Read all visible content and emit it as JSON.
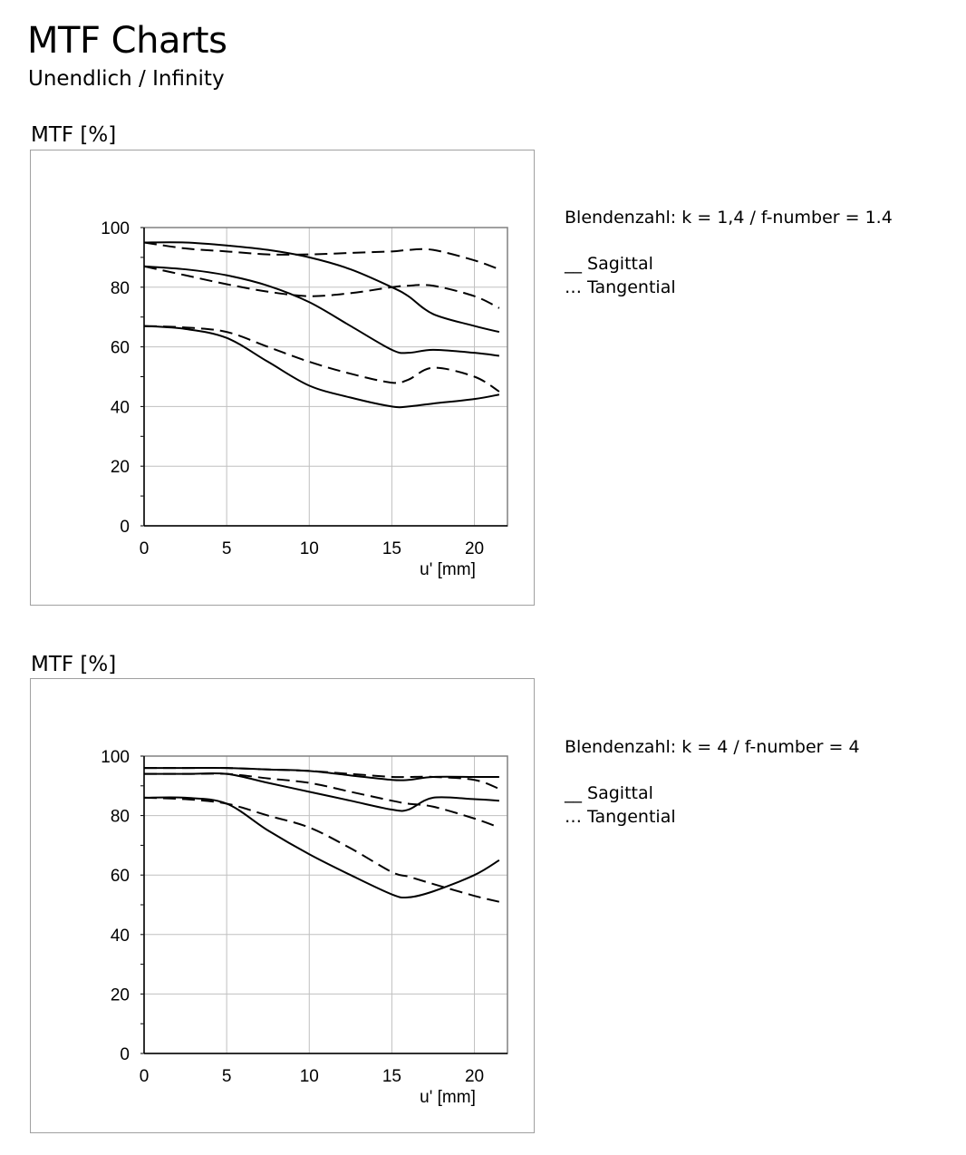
{
  "header": {
    "title": "MTF Charts",
    "subtitle": "Unendlich / Infinity"
  },
  "legend": {
    "sagittal": "__ Sagittal",
    "tangential": "… Tangential"
  },
  "chart_data": [
    {
      "type": "line",
      "ylabel": "MTF [%]",
      "xlabel": "u' [mm]",
      "caption": "Blendenzahl: k = 1,4 / f-number = 1.4",
      "xlim": [
        0,
        22
      ],
      "ylim": [
        0,
        100
      ],
      "xticks": [
        0,
        5,
        10,
        15,
        20
      ],
      "yticks": [
        0,
        20,
        40,
        60,
        80,
        100
      ],
      "grid": true,
      "x": [
        0,
        2.5,
        5,
        7.5,
        10,
        12.5,
        15,
        16,
        17.5,
        20,
        21.5
      ],
      "series": [
        {
          "name": "Sagittal 1",
          "style": "solid",
          "values": [
            95,
            95,
            94,
            92.5,
            90,
            86,
            80,
            77,
            71,
            67,
            65
          ]
        },
        {
          "name": "Tangential 1",
          "style": "dashed",
          "values": [
            95,
            93,
            92,
            91,
            91,
            91.5,
            92,
            92.5,
            92.5,
            89,
            86
          ]
        },
        {
          "name": "Sagittal 2",
          "style": "solid",
          "values": [
            87,
            86,
            84,
            80.5,
            75,
            67,
            59,
            58,
            59,
            58,
            57
          ]
        },
        {
          "name": "Tangential 2",
          "style": "dashed",
          "values": [
            87,
            84,
            81,
            78.5,
            77,
            78,
            80,
            80.5,
            80.5,
            77,
            73
          ]
        },
        {
          "name": "Sagittal 3",
          "style": "solid",
          "values": [
            67,
            66,
            63,
            55,
            47,
            43,
            40,
            40,
            41,
            42.5,
            44
          ]
        },
        {
          "name": "Tangential 3",
          "style": "dashed",
          "values": [
            67,
            66.5,
            65,
            60,
            55,
            51,
            48,
            49,
            53,
            50,
            45
          ]
        }
      ]
    },
    {
      "type": "line",
      "ylabel": "MTF [%]",
      "xlabel": "u' [mm]",
      "caption": "Blendenzahl: k = 4 / f-number = 4",
      "xlim": [
        0,
        22
      ],
      "ylim": [
        0,
        100
      ],
      "xticks": [
        0,
        5,
        10,
        15,
        20
      ],
      "yticks": [
        0,
        20,
        40,
        60,
        80,
        100
      ],
      "grid": true,
      "x": [
        0,
        2.5,
        5,
        7.5,
        10,
        12.5,
        15,
        16,
        17.5,
        20,
        21.5
      ],
      "series": [
        {
          "name": "Sagittal 1",
          "style": "solid",
          "values": [
            96,
            96,
            96,
            95.5,
            95,
            93.5,
            92,
            92,
            93,
            93,
            93
          ]
        },
        {
          "name": "Tangential 1",
          "style": "dashed",
          "values": [
            96,
            96,
            96,
            95.5,
            95,
            94,
            93,
            93,
            93,
            92,
            89
          ]
        },
        {
          "name": "Sagittal 2",
          "style": "solid",
          "values": [
            94,
            94,
            94,
            91,
            88,
            85,
            82,
            82,
            86,
            85.5,
            85
          ]
        },
        {
          "name": "Tangential 2",
          "style": "dashed",
          "values": [
            94,
            94,
            94,
            92.5,
            91,
            88,
            85,
            84,
            83,
            79,
            76
          ]
        },
        {
          "name": "Sagittal 3",
          "style": "solid",
          "values": [
            86,
            86,
            84,
            75,
            67,
            60,
            53.5,
            52.5,
            54.5,
            60,
            65
          ]
        },
        {
          "name": "Tangential 3",
          "style": "dashed",
          "values": [
            86,
            85.5,
            84,
            80,
            76,
            69,
            61,
            59.5,
            57,
            53,
            51
          ]
        }
      ]
    }
  ]
}
